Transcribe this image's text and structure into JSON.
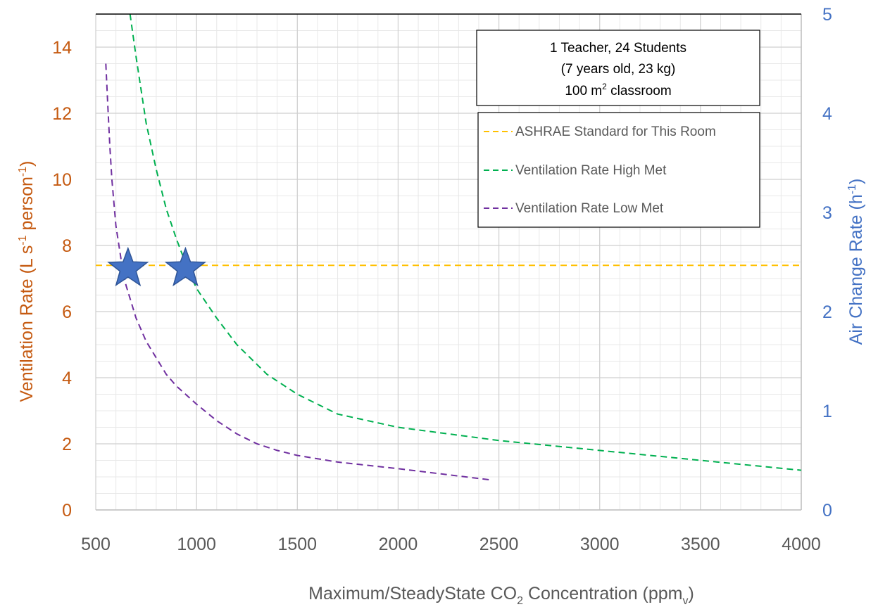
{
  "chart_data": {
    "type": "line",
    "annotation": {
      "line1": "1 Teacher, 24 Students",
      "line2": "(7 years old, 23 kg)",
      "line3_pre": "100 m",
      "line3_sup": "2",
      "line3_post": " classroom"
    },
    "xlabel": {
      "pre": "Maximum/SteadyState CO",
      "sub1": "2",
      "mid": " Concentration (ppm",
      "sub2": "v",
      "post": ")"
    },
    "ylabel_left": {
      "pre": "Ventilation Rate (L s",
      "sup1": "-1",
      "mid": " person",
      "sup2": "-1",
      "post": ")"
    },
    "ylabel_right": {
      "pre": "Air Change Rate (h",
      "sup": "-1",
      "post": ")"
    },
    "xlim": [
      500,
      4000
    ],
    "ylim_left": [
      0,
      15
    ],
    "ylim_right": [
      0,
      5
    ],
    "x_ticks": [
      500,
      1000,
      1500,
      2000,
      2500,
      3000,
      3500,
      4000
    ],
    "y_ticks_left": [
      0,
      2,
      4,
      6,
      8,
      10,
      12,
      14
    ],
    "y_ticks_right": [
      0,
      1,
      2,
      3,
      4,
      5
    ],
    "grid": true,
    "colors": {
      "left_axis": "#c55a11",
      "right_axis": "#4472c4",
      "ashrae": "#ffc000",
      "high_met": "#00b050",
      "low_met": "#7030a0",
      "star_fill": "#4472c4",
      "star_stroke": "#2f5597"
    },
    "legend_position": "top-right",
    "series": [
      {
        "name": "ASHRAE Standard for This Room",
        "color": "#ffc000",
        "x": [
          500,
          4000
        ],
        "y": [
          7.4,
          7.4
        ]
      },
      {
        "name": "Ventilation Rate High Met",
        "color": "#00b050",
        "x": [
          670,
          700,
          750,
          800,
          850,
          900,
          950,
          1000,
          1100,
          1200,
          1350,
          1500,
          1700,
          2000,
          2500,
          3000,
          3500,
          4000
        ],
        "y": [
          15.0,
          13.7,
          11.7,
          10.3,
          9.1,
          8.2,
          7.4,
          6.7,
          5.8,
          5.0,
          4.1,
          3.5,
          2.9,
          2.5,
          2.1,
          1.8,
          1.5,
          1.2
        ]
      },
      {
        "name": "Ventilation Rate Low Met",
        "color": "#7030a0",
        "x": [
          550,
          560,
          570,
          580,
          600,
          625,
          650,
          700,
          750,
          800,
          850,
          900,
          1000,
          1100,
          1200,
          1300,
          1400,
          1500,
          1700,
          2000,
          2200,
          2470
        ],
        "y": [
          13.5,
          12.2,
          11.0,
          10.0,
          8.6,
          7.6,
          6.8,
          5.8,
          5.1,
          4.6,
          4.1,
          3.75,
          3.2,
          2.7,
          2.3,
          2.0,
          1.8,
          1.65,
          1.45,
          1.25,
          1.1,
          0.9
        ]
      }
    ],
    "markers": [
      {
        "x": 660,
        "y": 7.3
      },
      {
        "x": 945,
        "y": 7.3
      }
    ]
  }
}
